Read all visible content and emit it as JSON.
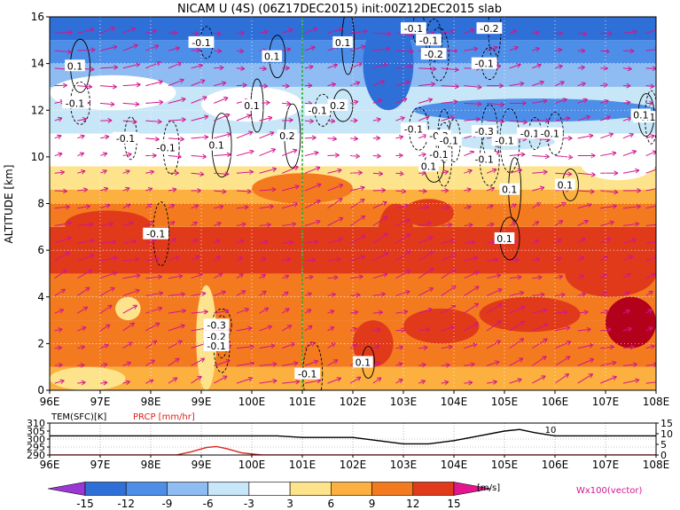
{
  "chart_data": {
    "type": "heatmap",
    "title": "NICAM U (4S) (06Z17DEC2015) init:00Z12DEC2015 slab",
    "main": {
      "xlabel": "",
      "ylabel": "ALTITUDE [km]",
      "xlim": [
        96,
        108
      ],
      "ylim": [
        0,
        16
      ],
      "x_ticks": [
        "96E",
        "97E",
        "98E",
        "99E",
        "100E",
        "101E",
        "102E",
        "103E",
        "104E",
        "105E",
        "106E",
        "107E",
        "108E"
      ],
      "y_ticks": [
        "0",
        "2",
        "4",
        "6",
        "8",
        "10",
        "12",
        "14",
        "16"
      ],
      "grid": true,
      "marker_line_lon": 101,
      "shading_levels": [
        -15,
        -12,
        -9,
        -6,
        -3,
        3,
        6,
        9,
        12,
        15
      ],
      "bands": [
        {
          "alt": [
            0.0,
            1.0
          ],
          "value": 7
        },
        {
          "alt": [
            1.0,
            2.0
          ],
          "value": 10
        },
        {
          "alt": [
            2.0,
            3.0
          ],
          "value": 11
        },
        {
          "alt": [
            3.0,
            4.0
          ],
          "value": 10
        },
        {
          "alt": [
            4.0,
            5.0
          ],
          "value": 11
        },
        {
          "alt": [
            5.0,
            6.0
          ],
          "value": 12
        },
        {
          "alt": [
            6.0,
            7.0
          ],
          "value": 13
        },
        {
          "alt": [
            7.0,
            8.0
          ],
          "value": 11
        },
        {
          "alt": [
            8.0,
            8.6
          ],
          "value": 8
        },
        {
          "alt": [
            8.6,
            9.6
          ],
          "value": 5
        },
        {
          "alt": [
            9.6,
            10.3
          ],
          "value": 2
        },
        {
          "alt": [
            10.3,
            11.0
          ],
          "value": -2
        },
        {
          "alt": [
            11.0,
            12.0
          ],
          "value": -4
        },
        {
          "alt": [
            12.0,
            13.0
          ],
          "value": -6
        },
        {
          "alt": [
            13.0,
            14.0
          ],
          "value": -9
        },
        {
          "alt": [
            14.0,
            15.0
          ],
          "value": -12
        },
        {
          "alt": [
            15.0,
            16.0
          ],
          "value": -14
        }
      ],
      "patches": [
        {
          "lon": [
            96.0,
            97.5
          ],
          "alt": [
            0.0,
            1.0
          ],
          "value": 4
        },
        {
          "lon": [
            98.9,
            99.3
          ],
          "alt": [
            0.0,
            4.5
          ],
          "value": 4
        },
        {
          "lon": [
            97.3,
            97.8
          ],
          "alt": [
            3.0,
            4.0
          ],
          "value": 4
        },
        {
          "lon": [
            102.0,
            102.8
          ],
          "alt": [
            1.0,
            3.0
          ],
          "value": 13
        },
        {
          "lon": [
            103.0,
            104.5
          ],
          "alt": [
            2.0,
            3.5
          ],
          "value": 13
        },
        {
          "lon": [
            104.5,
            106.5
          ],
          "alt": [
            2.5,
            4.0
          ],
          "value": 13
        },
        {
          "lon": [
            107.0,
            108.0
          ],
          "alt": [
            1.8,
            4.0
          ],
          "value": 16
        },
        {
          "lon": [
            106.2,
            108.0
          ],
          "alt": [
            4.0,
            6.0
          ],
          "value": 13
        },
        {
          "lon": [
            96.3,
            98.0
          ],
          "alt": [
            6.5,
            7.7
          ],
          "value": 13
        },
        {
          "lon": [
            102.5,
            103.2
          ],
          "alt": [
            5.5,
            8.0
          ],
          "value": 13
        },
        {
          "lon": [
            103.0,
            104.0
          ],
          "alt": [
            7.0,
            8.2
          ],
          "value": 13
        },
        {
          "lon": [
            100.0,
            102.0
          ],
          "alt": [
            8.0,
            9.3
          ],
          "value": 10
        },
        {
          "lon": [
            102.2,
            103.2
          ],
          "alt": [
            12.0,
            16.0
          ],
          "value": -15
        },
        {
          "lon": [
            103.2,
            108.0
          ],
          "alt": [
            11.5,
            12.5
          ],
          "value": -12
        },
        {
          "lon": [
            96.0,
            98.5
          ],
          "alt": [
            12.0,
            13.5
          ],
          "value": -2
        },
        {
          "lon": [
            99.0,
            101.0
          ],
          "alt": [
            11.5,
            13.0
          ],
          "value": -2
        },
        {
          "lon": [
            106.5,
            108.0
          ],
          "alt": [
            9.0,
            10.5
          ],
          "value": -2
        },
        {
          "lon": [
            104.0,
            106.0
          ],
          "alt": [
            10.3,
            11.0
          ],
          "value": -4
        }
      ],
      "contour_labels": [
        {
          "text": "-0.1",
          "lon": 99.0,
          "alt": 14.9
        },
        {
          "text": "0.1",
          "lon": 100.4,
          "alt": 14.3
        },
        {
          "text": "0.1",
          "lon": 96.5,
          "alt": 13.9
        },
        {
          "text": "0.1",
          "lon": 101.8,
          "alt": 14.9
        },
        {
          "text": "-0.1",
          "lon": 101.3,
          "alt": 12.0
        },
        {
          "text": "-0.1",
          "lon": 96.5,
          "alt": 12.3
        },
        {
          "text": "0.1",
          "lon": 100.0,
          "alt": 12.2
        },
        {
          "text": "0.2",
          "lon": 100.7,
          "alt": 10.9
        },
        {
          "text": "0.2",
          "lon": 101.7,
          "alt": 12.2
        },
        {
          "text": "-0.1",
          "lon": 97.5,
          "alt": 10.8
        },
        {
          "text": "-0.1",
          "lon": 98.3,
          "alt": 10.4
        },
        {
          "text": "0.1",
          "lon": 99.3,
          "alt": 10.5
        },
        {
          "text": "-0.1",
          "lon": 103.2,
          "alt": 15.5
        },
        {
          "text": "-0.1",
          "lon": 103.5,
          "alt": 15.0
        },
        {
          "text": "-0.2",
          "lon": 103.6,
          "alt": 14.4
        },
        {
          "text": "-0.2",
          "lon": 104.7,
          "alt": 15.5
        },
        {
          "text": "-0.1",
          "lon": 104.6,
          "alt": 14.0
        },
        {
          "text": "-0.1",
          "lon": 103.2,
          "alt": 11.2
        },
        {
          "text": "-0.3",
          "lon": 103.7,
          "alt": 10.9
        },
        {
          "text": "-0.1",
          "lon": 103.7,
          "alt": 10.1
        },
        {
          "text": "0.1",
          "lon": 103.5,
          "alt": 9.6
        },
        {
          "text": "-0.1",
          "lon": 103.9,
          "alt": 10.7
        },
        {
          "text": "-0.3",
          "lon": 104.6,
          "alt": 11.1
        },
        {
          "text": "-0.1",
          "lon": 105.0,
          "alt": 10.7
        },
        {
          "text": "-0.1",
          "lon": 105.5,
          "alt": 11.0
        },
        {
          "text": "-0.1",
          "lon": 105.9,
          "alt": 11.0
        },
        {
          "text": "-0.1",
          "lon": 104.6,
          "alt": 9.9
        },
        {
          "text": "0.1",
          "lon": 105.1,
          "alt": 8.6
        },
        {
          "text": "0.1",
          "lon": 106.2,
          "alt": 8.8
        },
        {
          "text": "0.1",
          "lon": 105.0,
          "alt": 6.5
        },
        {
          "text": "-0.1",
          "lon": 107.8,
          "alt": 11.7
        },
        {
          "text": "-0.1",
          "lon": 98.1,
          "alt": 6.7
        },
        {
          "text": "-0.3",
          "lon": 99.3,
          "alt": 2.8
        },
        {
          "text": "-0.2",
          "lon": 99.3,
          "alt": 2.3
        },
        {
          "text": "-0.1",
          "lon": 99.3,
          "alt": 1.9
        },
        {
          "text": "-0.1",
          "lon": 101.1,
          "alt": 0.7
        },
        {
          "text": "0.1",
          "lon": 102.2,
          "alt": 1.2
        },
        {
          "text": "0.1",
          "lon": 107.7,
          "alt": 11.8
        }
      ],
      "wind_vector_label": "Wx100(vector)"
    },
    "surface_panel": {
      "left_label": "TEM(SFC)[K]",
      "right_label": "PRCP [mm/hr]",
      "left_ticks": [
        "310",
        "305",
        "300",
        "295",
        "290"
      ],
      "right_ticks": [
        "15",
        "10",
        "5",
        "0"
      ],
      "x_ticks": [
        "96E",
        "97E",
        "98E",
        "99E",
        "100E",
        "101E",
        "102E",
        "103E",
        "104E",
        "105E",
        "106E",
        "107E",
        "108E"
      ],
      "tem_ylim": [
        290,
        310
      ],
      "prcp_ylim": [
        0,
        15
      ],
      "tem_series": {
        "lon": [
          96,
          97,
          98,
          99,
          100,
          100.5,
          101,
          101.5,
          102,
          102.5,
          103,
          103.5,
          104,
          104.5,
          105,
          105.3,
          105.6,
          106,
          106.5,
          107,
          108
        ],
        "values": [
          302,
          302,
          302,
          302,
          302,
          302,
          301,
          301,
          301,
          299,
          297,
          297,
          299,
          302,
          305,
          306,
          304,
          302,
          302,
          302,
          302
        ]
      },
      "prcp_series": {
        "lon": [
          96,
          98.5,
          98.8,
          99.1,
          99.3,
          99.5,
          99.8,
          100.2,
          108
        ],
        "values": [
          0,
          0,
          1.5,
          3.5,
          4,
          3,
          1,
          0,
          0
        ]
      },
      "contour_text": "10"
    },
    "colorbar": {
      "ticks": [
        "-15",
        "-12",
        "-9",
        "-6",
        "-3",
        "3",
        "6",
        "9",
        "12",
        "15"
      ],
      "unit": "[m/s]",
      "colors": [
        "#9b38d5",
        "#2f6fd8",
        "#4d8fe8",
        "#8fbcf2",
        "#c7e6f7",
        "#ffffff",
        "#fde48c",
        "#fbb040",
        "#f47a1f",
        "#e03a1a",
        "#b3001b",
        "#e3168d"
      ]
    }
  }
}
